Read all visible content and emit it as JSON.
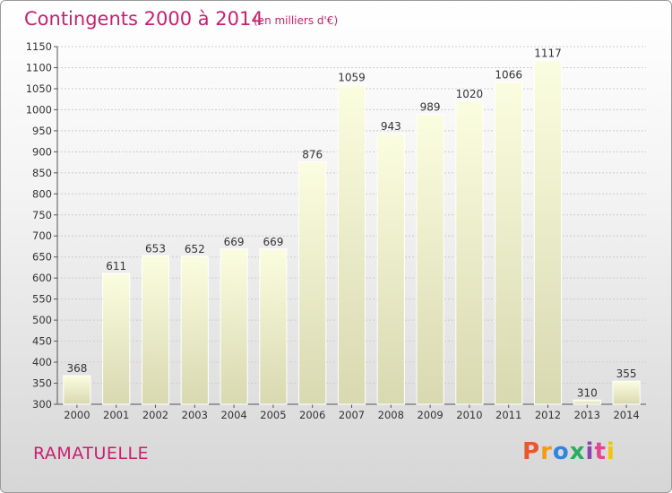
{
  "header": {
    "title": "Contingents 2000 à 2014",
    "subtitle": "(en milliers d'€)"
  },
  "footer": {
    "commune": "RAMATUELLE",
    "logo_text": "Proxiti",
    "logo_colors": [
      "#e8582a",
      "#f39c12",
      "#2e86de",
      "#27ae60",
      "#8e44ad",
      "#e84393",
      "#f1c40f"
    ]
  },
  "colors": {
    "accent": "#c8206e",
    "bar_top": "#fbfde0",
    "bar_bottom": "#d8d9b0",
    "grid": "#cccccc"
  },
  "chart_data": {
    "type": "bar",
    "title": "Contingents 2000 à 2014",
    "subtitle": "(en milliers d'€)",
    "categories": [
      "2000",
      "2001",
      "2002",
      "2003",
      "2004",
      "2005",
      "2006",
      "2007",
      "2008",
      "2009",
      "2010",
      "2011",
      "2012",
      "2013",
      "2014"
    ],
    "values": [
      368,
      611,
      653,
      652,
      669,
      669,
      876,
      1059,
      943,
      989,
      1020,
      1066,
      1117,
      310,
      355
    ],
    "ylim": [
      300,
      1150
    ],
    "yticks": [
      300,
      350,
      400,
      450,
      500,
      550,
      600,
      650,
      700,
      750,
      800,
      850,
      900,
      950,
      1000,
      1050,
      1100,
      1150
    ],
    "grid": true,
    "xlabel": "",
    "ylabel": ""
  }
}
